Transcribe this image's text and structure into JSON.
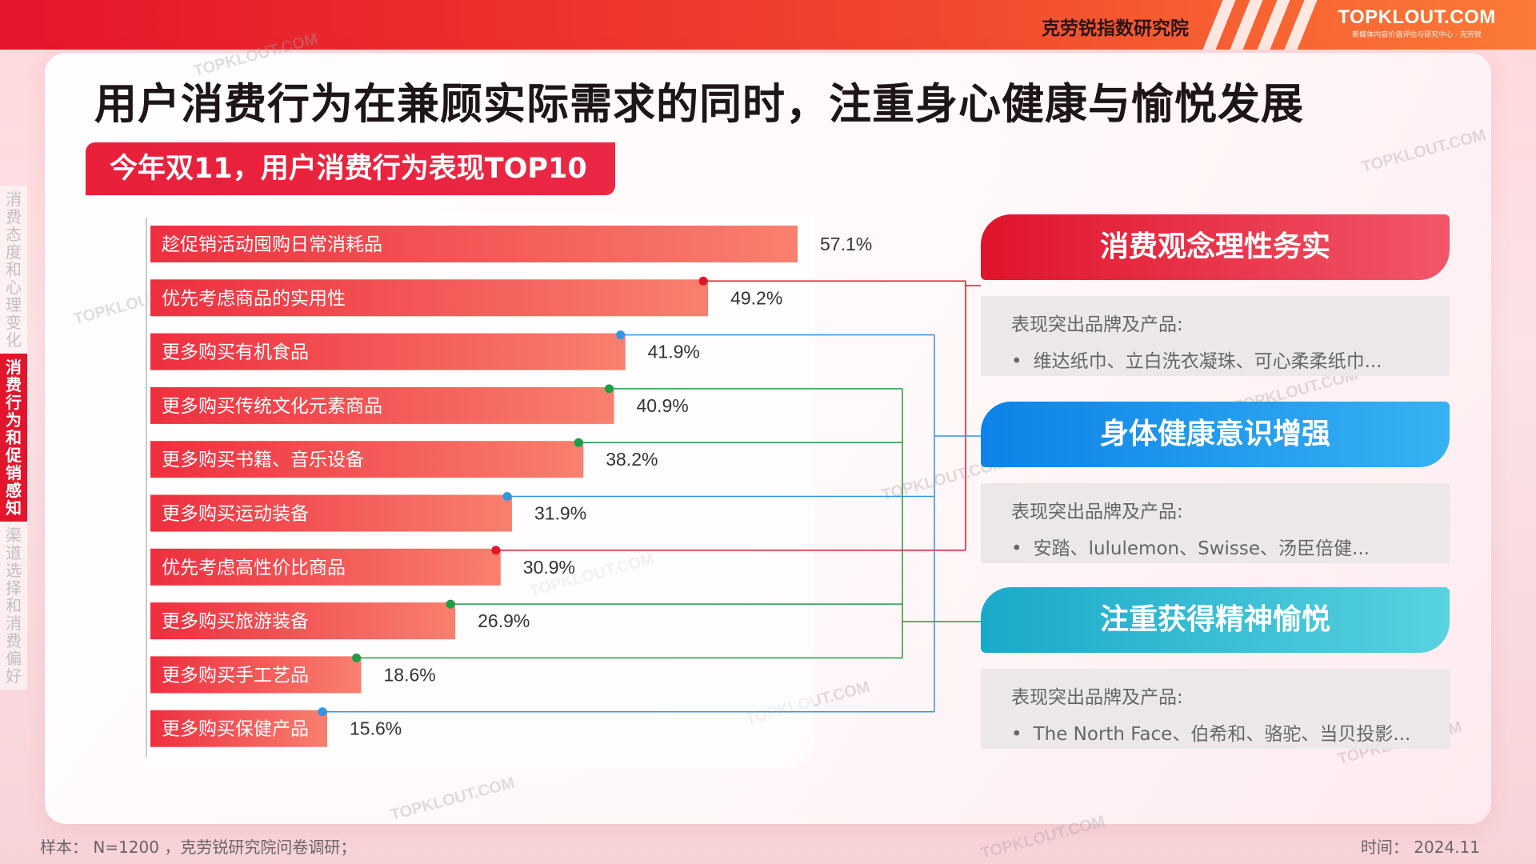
{
  "header": {
    "org_name": "克劳锐指数研究院",
    "brand_logo": "TOPKLOUT.COM",
    "brand_logo_sub": "新媒体内容价值评估与研究中心 · 克劳锐"
  },
  "page_title": "用户消费行为在兼顾实际需求的同时，注重身心健康与愉悦发展",
  "subtitle": "今年双11，用户消费行为表现TOP10",
  "sidebar": {
    "items": [
      {
        "label": "消费态度和心理变化",
        "active": false
      },
      {
        "label": "消费行为和促销感知",
        "active": true
      },
      {
        "label": "渠道选择和消费偏好",
        "active": false
      }
    ]
  },
  "chart_data": {
    "type": "bar",
    "orientation": "horizontal",
    "categories": [
      "趁促销活动囤购日常消耗品",
      "优先考虑商品的实用性",
      "更多购买有机食品",
      "更多购买传统文化元素商品",
      "更多购买书籍、音乐设备",
      "更多购买运动装备",
      "优先考虑高性价比商品",
      "更多购买旅游装备",
      "更多购买手工艺品",
      "更多购买保健产品"
    ],
    "values": [
      57.1,
      49.2,
      41.9,
      40.9,
      38.2,
      31.9,
      30.9,
      26.9,
      18.6,
      15.6
    ],
    "value_labels": [
      "57.1%",
      "49.2%",
      "41.9%",
      "40.9%",
      "38.2%",
      "31.9%",
      "30.9%",
      "26.9%",
      "18.6%",
      "15.6%"
    ],
    "group_of": [
      null,
      0,
      1,
      2,
      2,
      1,
      0,
      2,
      2,
      1
    ],
    "xlim": [
      0,
      57.1
    ],
    "colors": {
      "bar_start": "#ee2f3f",
      "bar_end": "#f8806f",
      "group0": "#e2152c",
      "group1": "#2f97e4",
      "group2": "#1f9d48"
    }
  },
  "categories_panel": [
    {
      "title": "消费观念理性务实",
      "label": "表现突出品牌及产品:",
      "brands": "维达纸巾、立白洗衣凝珠、可心柔柔纸巾...",
      "color_start": "#e0142b",
      "color_end": "#f2566a"
    },
    {
      "title": "身体健康意识增强",
      "label": "表现突出品牌及产品:",
      "brands": "安踏、lululemon、Swisse、汤臣倍健...",
      "color_start": "#0d82e8",
      "color_end": "#36b2f2"
    },
    {
      "title": "注重获得精神愉悦",
      "label": "表现突出品牌及产品:",
      "brands": "The North Face、伯希和、骆驼、当贝投影...",
      "color_start": "#19a9c9",
      "color_end": "#58d2df"
    }
  ],
  "footer": {
    "sample": "样本： N=1200 ，克劳锐研究院问卷调研；",
    "time": "时间： 2024.11"
  },
  "watermark": "TOPKLOUT.COM"
}
